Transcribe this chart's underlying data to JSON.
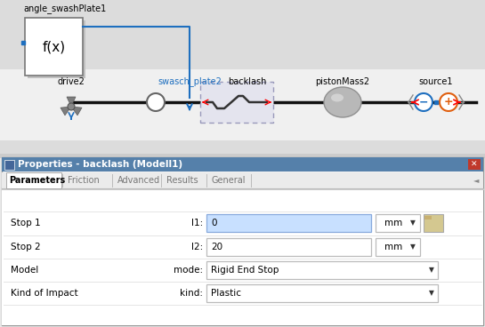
{
  "bg_diagram": "#e8e8e8",
  "bg_white": "#ffffff",
  "block_label_top": "angle_swashPlate1",
  "block_label_drive": "drive2",
  "block_label_swasch": "swasch_plate2",
  "block_label_backlash": "backlash",
  "block_label_piston": "pistonMass2",
  "block_label_source": "source1",
  "props_title": "Properties - backlash (Modell1)",
  "tabs": [
    "Parameters",
    "Friction",
    "Advanced",
    "Results",
    "General"
  ],
  "active_tab": "Parameters",
  "rows": [
    {
      "label": "Stop 1",
      "param": "l1:",
      "value": "0",
      "unit": "mm",
      "highlighted": true
    },
    {
      "label": "Stop 2",
      "param": "l2:",
      "value": "20",
      "unit": "mm",
      "highlighted": false
    },
    {
      "label": "Model",
      "param": "mode:",
      "value": "Rigid End Stop",
      "unit": null,
      "highlighted": false
    },
    {
      "label": "Kind of Impact",
      "param": "kind:",
      "value": "Plastic",
      "unit": null,
      "highlighted": false
    }
  ],
  "blue": "#1e6fbf",
  "red": "#cc2200",
  "orange": "#e06010",
  "gray_label": "#1e6fbf",
  "line_black": "#111111",
  "props_title_bg": "#5580aa",
  "props_title_text": "#ffffff",
  "x_btn_bg": "#c0392b",
  "dialog_border": "#aaaaaa",
  "tab_bar_bg": "#e0e0e0",
  "tab_sep": "#999999"
}
